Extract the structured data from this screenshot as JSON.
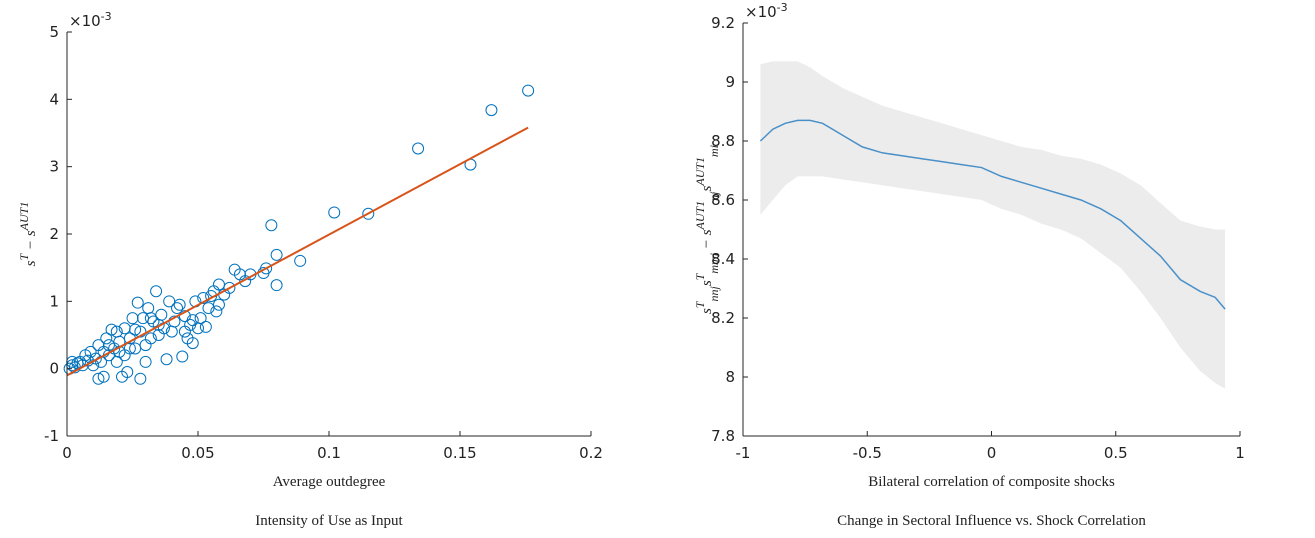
{
  "chart_data": [
    {
      "type": "scatter",
      "caption": "Intensity of Use as Input",
      "xlabel": "Average outdegree",
      "ylabel": [
        {
          "text": "s"
        },
        {
          "text": "T",
          "pos": "sup"
        },
        {
          "text": " − s"
        },
        {
          "text": "AUT1",
          "pos": "sup"
        }
      ],
      "multiplier": {
        "base": "×10",
        "exponent": "-3"
      },
      "xlim": [
        0,
        0.2
      ],
      "xticks": [
        0,
        0.05,
        0.1,
        0.15,
        0.2
      ],
      "ylim": [
        -1,
        5
      ],
      "yticks": [
        -1,
        0,
        1,
        2,
        3,
        4,
        5
      ],
      "color": "#0072bd",
      "x": [
        0.176,
        0.162,
        0.154,
        0.134,
        0.115,
        0.102,
        0.089,
        0.08,
        0.08,
        0.078,
        0.076,
        0.075,
        0.07,
        0.068,
        0.066,
        0.064,
        0.062,
        0.06,
        0.058,
        0.058,
        0.056,
        0.055,
        0.054,
        0.052,
        0.051,
        0.05,
        0.049,
        0.048,
        0.047,
        0.046,
        0.045,
        0.044,
        0.043,
        0.042,
        0.041,
        0.04,
        0.039,
        0.038,
        0.037,
        0.036,
        0.035,
        0.034,
        0.033,
        0.032,
        0.031,
        0.03,
        0.03,
        0.029,
        0.028,
        0.028,
        0.027,
        0.026,
        0.025,
        0.024,
        0.023,
        0.022,
        0.022,
        0.021,
        0.02,
        0.019,
        0.019,
        0.018,
        0.017,
        0.016,
        0.015,
        0.014,
        0.014,
        0.013,
        0.012,
        0.012,
        0.011,
        0.01,
        0.009,
        0.008,
        0.007,
        0.006,
        0.005,
        0.004,
        0.003,
        0.002,
        0.001,
        0.002,
        0.035,
        0.032,
        0.026,
        0.024,
        0.02,
        0.016,
        0.045,
        0.048,
        0.053,
        0.057
      ],
      "y": [
        4.13,
        3.84,
        3.03,
        3.27,
        2.3,
        2.32,
        1.6,
        1.69,
        1.24,
        2.13,
        1.49,
        1.42,
        1.4,
        1.3,
        1.4,
        1.47,
        1.2,
        1.1,
        0.95,
        1.25,
        1.15,
        1.08,
        0.9,
        1.05,
        0.75,
        0.6,
        1.0,
        0.38,
        0.65,
        0.45,
        0.78,
        0.18,
        0.95,
        0.9,
        0.7,
        0.55,
        1.0,
        0.14,
        0.6,
        0.8,
        0.5,
        1.15,
        0.7,
        0.45,
        0.9,
        0.1,
        0.35,
        0.75,
        -0.15,
        0.55,
        0.98,
        0.3,
        0.75,
        0.45,
        -0.05,
        0.6,
        0.2,
        -0.12,
        0.4,
        0.1,
        0.55,
        0.3,
        0.58,
        0.2,
        0.45,
        -0.12,
        0.25,
        0.1,
        -0.15,
        0.35,
        0.15,
        0.05,
        0.25,
        0.12,
        0.2,
        0.05,
        0.1,
        0.08,
        0.02,
        0.05,
        0.0,
        0.1,
        0.65,
        0.75,
        0.58,
        0.3,
        0.25,
        0.35,
        0.55,
        0.72,
        0.62,
        0.85
      ],
      "fit_line": {
        "x": [
          0,
          0.176
        ],
        "y": [
          -0.1,
          3.58
        ],
        "color": "#d95319"
      }
    },
    {
      "type": "line",
      "caption": "Change in Sectoral Influence vs. Shock Correlation",
      "xlabel": "Bilateral correlation of composite shocks",
      "ylabel": [
        {
          "text": "s"
        },
        {
          "text": "T",
          "pos": "sup"
        },
        {
          "text": "nnj",
          "pos": "sub"
        },
        {
          "text": "s"
        },
        {
          "text": "T",
          "pos": "sup"
        },
        {
          "text": "mmi",
          "pos": "sub"
        },
        {
          "text": " − s"
        },
        {
          "text": "AUT1",
          "pos": "sup"
        },
        {
          "text": "nj",
          "pos": "sub"
        },
        {
          "text": "s"
        },
        {
          "text": "AUT1",
          "pos": "sup"
        },
        {
          "text": "mi",
          "pos": "sub"
        }
      ],
      "multiplier": {
        "base": "×10",
        "exponent": "-3"
      },
      "xlim": [
        -1,
        1
      ],
      "xticks": [
        -1,
        -0.5,
        0,
        0.5,
        1
      ],
      "ylim": [
        7.8,
        9.2
      ],
      "yticks": [
        7.8,
        8,
        8.2,
        8.4,
        8.6,
        8.8,
        9,
        9.2
      ],
      "color": "#4a90c8",
      "band_color": "#ececec",
      "x": [
        -0.93,
        -0.88,
        -0.83,
        -0.78,
        -0.73,
        -0.68,
        -0.6,
        -0.52,
        -0.44,
        -0.36,
        -0.28,
        -0.2,
        -0.12,
        -0.04,
        0.04,
        0.12,
        0.2,
        0.28,
        0.36,
        0.44,
        0.52,
        0.6,
        0.68,
        0.76,
        0.84,
        0.9,
        0.94
      ],
      "y": [
        8.8,
        8.84,
        8.86,
        8.87,
        8.87,
        8.86,
        8.82,
        8.78,
        8.76,
        8.75,
        8.74,
        8.73,
        8.72,
        8.71,
        8.68,
        8.66,
        8.64,
        8.62,
        8.6,
        8.57,
        8.53,
        8.47,
        8.41,
        8.33,
        8.29,
        8.27,
        8.23
      ],
      "band": {
        "upper": [
          9.06,
          9.07,
          9.07,
          9.07,
          9.05,
          9.02,
          8.98,
          8.95,
          8.92,
          8.9,
          8.88,
          8.86,
          8.84,
          8.82,
          8.8,
          8.78,
          8.77,
          8.75,
          8.74,
          8.72,
          8.69,
          8.65,
          8.59,
          8.53,
          8.51,
          8.5,
          8.5
        ],
        "lower": [
          8.55,
          8.6,
          8.65,
          8.68,
          8.68,
          8.68,
          8.67,
          8.66,
          8.65,
          8.64,
          8.63,
          8.62,
          8.61,
          8.6,
          8.57,
          8.55,
          8.52,
          8.5,
          8.47,
          8.42,
          8.37,
          8.29,
          8.2,
          8.1,
          8.02,
          7.98,
          7.96
        ]
      }
    }
  ]
}
